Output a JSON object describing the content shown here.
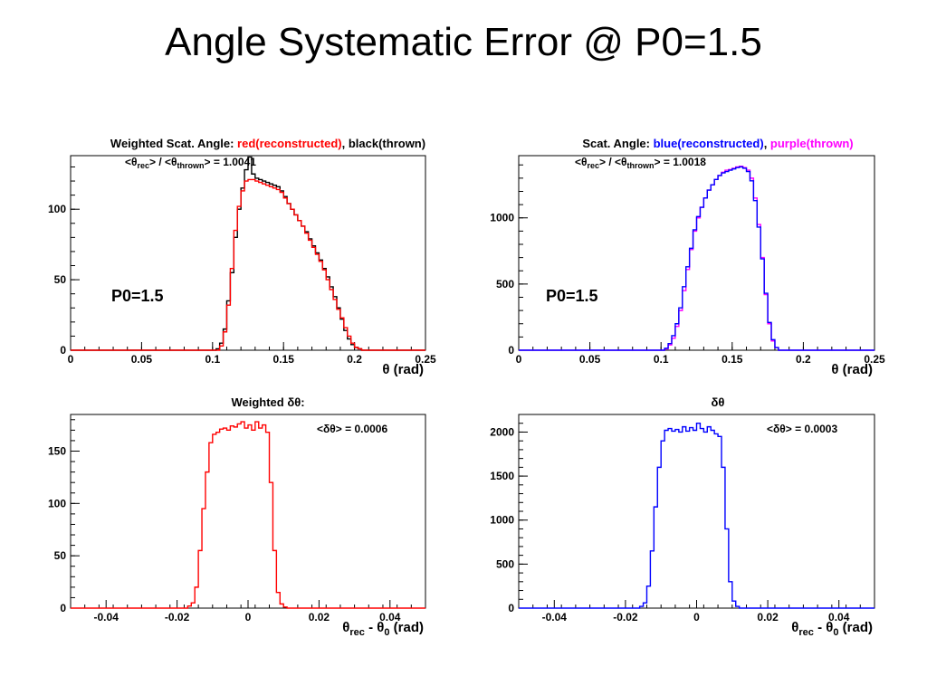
{
  "slide": {
    "title": "Angle Systematic Error @ P0=1.5"
  },
  "chart_data": [
    {
      "type": "histogram",
      "title_parts": [
        {
          "text": "Weighted Scat. Angle: ",
          "color": "#000000"
        },
        {
          "text": "red(reconstructed)",
          "color": "#ff0000"
        },
        {
          "text": ", black(thrown)",
          "color": "#000000"
        }
      ],
      "annotation": {
        "prefix": "<θ",
        "sub1": "rec",
        "mid": "> / <θ",
        "sub2": "thrown",
        "suffix": "> = 1.0041"
      },
      "label": "P0=1.5",
      "xlabel": "θ (rad)",
      "xlim": [
        0,
        0.25
      ],
      "ylim": [
        0,
        138
      ],
      "xticks": [
        0,
        0.05,
        0.1,
        0.15,
        0.2,
        0.25
      ],
      "xtick_labels": [
        "0",
        "0.05",
        "0.1",
        "0.15",
        "0.2",
        "0.25"
      ],
      "yticks": [
        0,
        50,
        100
      ],
      "ytick_labels": [
        "0",
        "50",
        "100"
      ],
      "series": [
        {
          "color": "#000000",
          "bins": {
            "start": 0.1,
            "width": 0.0025,
            "values": [
              0,
              1,
              5,
              15,
              35,
              55,
              80,
              100,
              115,
              128,
              137,
              125,
              122,
              121,
              120,
              119,
              118,
              117,
              116,
              113,
              109,
              104,
              100,
              96,
              92,
              88,
              84,
              79,
              74,
              69,
              64,
              58,
              52,
              45,
              38,
              30,
              22,
              14,
              8,
              4,
              2,
              1,
              0
            ]
          }
        },
        {
          "color": "#ff0000",
          "bins": {
            "start": 0.1,
            "width": 0.0025,
            "values": [
              0,
              0,
              3,
              13,
              32,
              58,
              85,
              102,
              113,
              120,
              121,
              121,
              120,
              119,
              118,
              117,
              116,
              115,
              114,
              112,
              108,
              104,
              100,
              96,
              92,
              88,
              83,
              78,
              73,
              68,
              63,
              57,
              50,
              43,
              36,
              29,
              23,
              16,
              10,
              5,
              2,
              1,
              0
            ]
          }
        }
      ]
    },
    {
      "type": "histogram",
      "title_parts": [
        {
          "text": "Scat. Angle: ",
          "color": "#000000"
        },
        {
          "text": "blue(reconstructed)",
          "color": "#0000ff"
        },
        {
          "text": ", ",
          "color": "#000000"
        },
        {
          "text": "purple(thrown)",
          "color": "#ff00ff"
        }
      ],
      "annotation": {
        "prefix": "<θ",
        "sub1": "rec",
        "mid": "> / <θ",
        "sub2": "thrown",
        "suffix": "> = 1.0018"
      },
      "label": "P0=1.5",
      "xlabel": "θ (rad)",
      "xlim": [
        0,
        0.25
      ],
      "ylim": [
        0,
        1470
      ],
      "xticks": [
        0,
        0.05,
        0.1,
        0.15,
        0.2,
        0.25
      ],
      "xtick_labels": [
        "0",
        "0.05",
        "0.1",
        "0.15",
        "0.2",
        "0.25"
      ],
      "yticks": [
        0,
        500,
        1000
      ],
      "ytick_labels": [
        "0",
        "500",
        "1000"
      ],
      "series": [
        {
          "color": "#ff00ff",
          "bins": {
            "start": 0.1,
            "width": 0.0025,
            "values": [
              0,
              10,
              40,
              90,
              180,
              300,
              450,
              610,
              760,
              900,
              1000,
              1080,
              1150,
              1210,
              1250,
              1290,
              1320,
              1345,
              1360,
              1365,
              1375,
              1385,
              1390,
              1380,
              1360,
              1300,
              1150,
              950,
              700,
              420,
              200,
              70,
              20,
              0
            ]
          }
        },
        {
          "color": "#0000ff",
          "bins": {
            "start": 0.1,
            "width": 0.0025,
            "values": [
              0,
              15,
              50,
              110,
              200,
              320,
              480,
              630,
              770,
              910,
              1010,
              1080,
              1150,
              1210,
              1250,
              1290,
              1320,
              1340,
              1350,
              1360,
              1370,
              1380,
              1385,
              1375,
              1350,
              1280,
              1130,
              930,
              690,
              430,
              210,
              80,
              20,
              0
            ]
          }
        }
      ]
    },
    {
      "type": "histogram",
      "title_parts": [
        {
          "text": "Weighted ",
          "color": "#000000"
        },
        {
          "text": "δθ:",
          "color": "#000000"
        }
      ],
      "annotation": {
        "prefix": "<δθ> = 0.0006"
      },
      "xlabel": "θrec - θ0 (rad)",
      "xlabel_parts": [
        "θ",
        "rec",
        " - θ",
        "0",
        " (rad)"
      ],
      "xlim": [
        -0.05,
        0.05
      ],
      "ylim": [
        0,
        185
      ],
      "xticks": [
        -0.04,
        -0.02,
        0,
        0.02,
        0.04
      ],
      "xtick_labels": [
        "-0.04",
        "-0.02",
        "0",
        "0.02",
        "0.04"
      ],
      "yticks": [
        0,
        50,
        100,
        150
      ],
      "ytick_labels": [
        "0",
        "50",
        "100",
        "150"
      ],
      "series": [
        {
          "color": "#ff0000",
          "bins": {
            "start": -0.018,
            "width": 0.001,
            "values": [
              0,
              2,
              5,
              20,
              55,
              95,
              130,
              158,
              166,
              168,
              171,
              172,
              170,
              174,
              173,
              176,
              178,
              172,
              175,
              170,
              178,
              172,
              175,
              168,
              120,
              55,
              15,
              4,
              1,
              0
            ]
          }
        }
      ]
    },
    {
      "type": "histogram",
      "title_parts": [
        {
          "text": "δθ",
          "color": "#000000"
        }
      ],
      "annotation": {
        "prefix": "<δθ> = 0.0003"
      },
      "xlabel": "θrec - θ0 (rad)",
      "xlabel_parts": [
        "θ",
        "rec",
        " - θ",
        "0",
        " (rad)"
      ],
      "xlim": [
        -0.05,
        0.05
      ],
      "ylim": [
        0,
        2200
      ],
      "xticks": [
        -0.04,
        -0.02,
        0,
        0.02,
        0.04
      ],
      "xtick_labels": [
        "-0.04",
        "-0.02",
        "0",
        "0.02",
        "0.04"
      ],
      "yticks": [
        0,
        500,
        1000,
        1500,
        2000
      ],
      "ytick_labels": [
        "0",
        "500",
        "1000",
        "1500",
        "2000"
      ],
      "series": [
        {
          "color": "#0000ff",
          "bins": {
            "start": -0.017,
            "width": 0.001,
            "values": [
              0,
              20,
              60,
              250,
              650,
              1150,
              1600,
              1900,
              2020,
              2040,
              2010,
              2030,
              2000,
              2060,
              2010,
              2050,
              2020,
              2100,
              2040,
              2000,
              2060,
              2020,
              1980,
              1950,
              1600,
              900,
              300,
              80,
              20,
              0
            ]
          }
        }
      ]
    }
  ]
}
